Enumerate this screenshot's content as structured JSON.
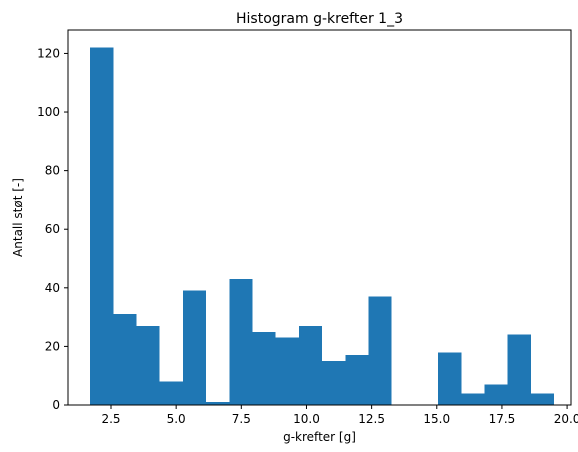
{
  "chart_data": {
    "type": "bar",
    "title": "Histogram g-krefter 1_3",
    "xlabel": "g-krefter [g]",
    "ylabel": "Antall støt [-]",
    "xlim": [
      0.85,
      20.15
    ],
    "ylim": [
      0,
      128
    ],
    "xticks": [
      {
        "value": 2.5,
        "label": "2.5"
      },
      {
        "value": 5.0,
        "label": "5.0"
      },
      {
        "value": 7.5,
        "label": "7.5"
      },
      {
        "value": 10.0,
        "label": "10.0"
      },
      {
        "value": 12.5,
        "label": "12.5"
      },
      {
        "value": 15.0,
        "label": "15.0"
      },
      {
        "value": 17.5,
        "label": "17.5"
      },
      {
        "value": 20.0,
        "label": "20.0"
      }
    ],
    "yticks": [
      {
        "value": 0,
        "label": "0"
      },
      {
        "value": 20,
        "label": "20"
      },
      {
        "value": 40,
        "label": "40"
      },
      {
        "value": 60,
        "label": "60"
      },
      {
        "value": 80,
        "label": "80"
      },
      {
        "value": 100,
        "label": "100"
      },
      {
        "value": 120,
        "label": "120"
      }
    ],
    "grid": false,
    "bar_color": "#1f77b4",
    "bins": [
      {
        "x0": 1.7,
        "x1": 2.59,
        "count": 122
      },
      {
        "x0": 2.59,
        "x1": 3.48,
        "count": 31
      },
      {
        "x0": 3.48,
        "x1": 4.37,
        "count": 27
      },
      {
        "x0": 4.37,
        "x1": 5.26,
        "count": 8
      },
      {
        "x0": 5.26,
        "x1": 6.15,
        "count": 39
      },
      {
        "x0": 6.15,
        "x1": 7.04,
        "count": 1
      },
      {
        "x0": 7.04,
        "x1": 7.93,
        "count": 43
      },
      {
        "x0": 7.93,
        "x1": 8.82,
        "count": 25
      },
      {
        "x0": 8.82,
        "x1": 9.71,
        "count": 23
      },
      {
        "x0": 9.71,
        "x1": 10.6,
        "count": 27
      },
      {
        "x0": 10.6,
        "x1": 11.49,
        "count": 15
      },
      {
        "x0": 11.49,
        "x1": 12.38,
        "count": 17
      },
      {
        "x0": 12.38,
        "x1": 13.27,
        "count": 37
      },
      {
        "x0": 13.27,
        "x1": 14.16,
        "count": 0
      },
      {
        "x0": 14.16,
        "x1": 15.05,
        "count": 0
      },
      {
        "x0": 15.05,
        "x1": 15.94,
        "count": 18
      },
      {
        "x0": 15.94,
        "x1": 16.83,
        "count": 4
      },
      {
        "x0": 16.83,
        "x1": 17.72,
        "count": 7
      },
      {
        "x0": 17.72,
        "x1": 18.61,
        "count": 24
      },
      {
        "x0": 18.61,
        "x1": 19.5,
        "count": 4
      }
    ]
  }
}
